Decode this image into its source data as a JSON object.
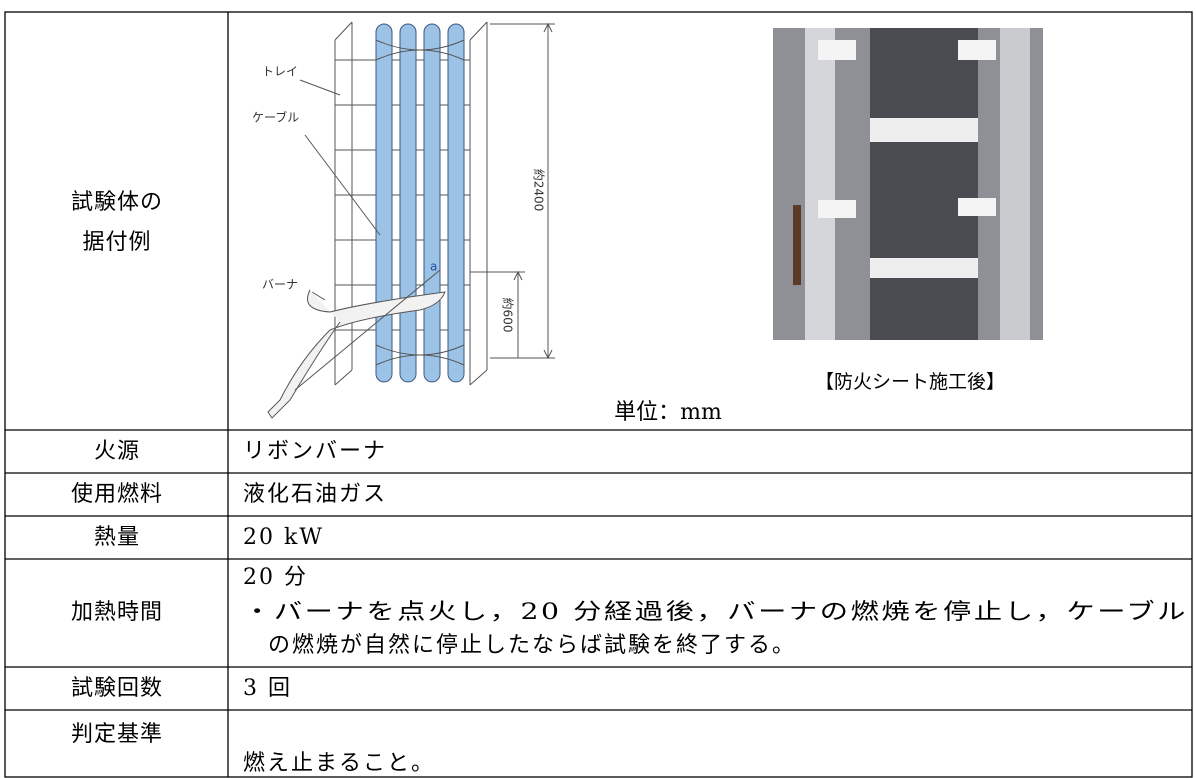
{
  "table": {
    "rows": [
      {
        "label_lines": [
          "試験体の",
          "据付例"
        ],
        "figure": {
          "tray": "トレイ",
          "cable": "ケーブル",
          "burner": "バーナ",
          "point": "a",
          "height_total": "約2400",
          "height_burner": "約600"
        },
        "photo_caption": "【防火シート施工後】",
        "unit": "単位：mm"
      },
      {
        "label": "火源",
        "content_lines": [
          "リボンバーナ"
        ]
      },
      {
        "label": "使用燃料",
        "content_lines": [
          "液化石油ガス"
        ]
      },
      {
        "label": "熱量",
        "content_lines": [
          "20 kW"
        ]
      },
      {
        "label": "加熱時間",
        "content_lines": [
          "20 分",
          "・バーナを点火し，20 分経過後，バーナの燃焼を停止し，ケーブル",
          "の燃焼が自然に停止したならば試験を終了する。"
        ]
      },
      {
        "label": "試験回数",
        "content_lines": [
          "3 回"
        ]
      },
      {
        "label": "判定基準",
        "content_lines": [
          "燃え止まること。"
        ]
      }
    ]
  }
}
